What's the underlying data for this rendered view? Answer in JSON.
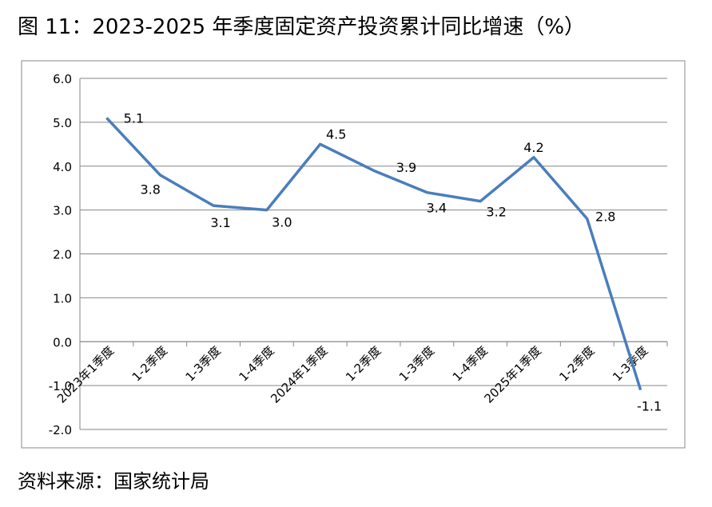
{
  "chart_data": {
    "type": "line",
    "title": "图 11：2023-2025 年季度固定资产投资累计同比增速（%）",
    "source": "资料来源：国家统计局",
    "categories": [
      "2023年1季度",
      "1-2季度",
      "1-3季度",
      "1-4季度",
      "2024年1季度",
      "1-2季度",
      "1-3季度",
      "1-4季度",
      "2025年1季度",
      "1-2季度",
      "1-3季度"
    ],
    "values": [
      5.1,
      3.8,
      3.1,
      3.0,
      4.5,
      3.9,
      3.4,
      3.2,
      4.2,
      2.8,
      -1.1
    ],
    "value_labels": [
      "5.1",
      "3.8",
      "3.1",
      "3.0",
      "4.5",
      "3.9",
      "3.4",
      "3.2",
      "4.2",
      "2.8",
      "-1.1"
    ],
    "color": "#4a7ebb",
    "ylim": [
      -2,
      6
    ],
    "yticks": [
      {
        "value": -2,
        "label": "-2.0"
      },
      {
        "value": -1,
        "label": "-1.0"
      },
      {
        "value": 0,
        "label": "0.0"
      },
      {
        "value": 1,
        "label": "1.0"
      },
      {
        "value": 2,
        "label": "2.0"
      },
      {
        "value": 3,
        "label": "3.0"
      },
      {
        "value": 4,
        "label": "4.0"
      },
      {
        "value": 5,
        "label": "5.0"
      },
      {
        "value": 6,
        "label": "6.0"
      }
    ],
    "grid": true
  }
}
